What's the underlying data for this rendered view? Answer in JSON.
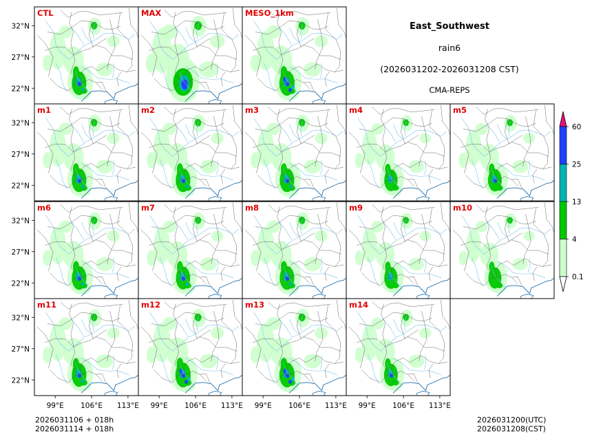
{
  "header": {
    "region": "East_Southwest",
    "variable": "rain6",
    "period": "(2026031202-2026031208 CST)",
    "system": "CMA-REPS"
  },
  "chart_data": {
    "type": "heatmap",
    "description_units": "6-hour accumulated precipitation (mm)",
    "lat_ticks": [
      "32°N",
      "27°N",
      "22°N"
    ],
    "lon_ticks": [
      "99°E",
      "106°E",
      "113°E"
    ],
    "lat_values": [
      32,
      27,
      22
    ],
    "lon_values": [
      99,
      106,
      113
    ],
    "lat_range": [
      19.5,
      35
    ],
    "lon_range": [
      95,
      115
    ],
    "colorbar": {
      "levels": [
        "0.1",
        "4",
        "13",
        "25",
        "60"
      ],
      "colors": [
        "#ccffcc",
        "#00c800",
        "#00b4b4",
        "#2040ff"
      ],
      "under_color": "#ffffff",
      "over_color": "#e6127c"
    },
    "members": [
      {
        "label": "CTL",
        "intensity": 1.0
      },
      {
        "label": "MAX",
        "intensity": 1.4
      },
      {
        "label": "MESO_1km",
        "intensity": 1.1
      },
      {
        "label": "m1",
        "intensity": 1.0
      },
      {
        "label": "m2",
        "intensity": 1.0
      },
      {
        "label": "m3",
        "intensity": 1.0
      },
      {
        "label": "m4",
        "intensity": 0.85
      },
      {
        "label": "m5",
        "intensity": 0.9
      },
      {
        "label": "m6",
        "intensity": 1.0
      },
      {
        "label": "m7",
        "intensity": 0.95
      },
      {
        "label": "m8",
        "intensity": 1.0
      },
      {
        "label": "m9",
        "intensity": 0.85
      },
      {
        "label": "m10",
        "intensity": 0.8
      },
      {
        "label": "m11",
        "intensity": 1.0
      },
      {
        "label": "m12",
        "intensity": 1.1
      },
      {
        "label": "m13",
        "intensity": 1.1
      },
      {
        "label": "m14",
        "intensity": 0.9
      }
    ]
  },
  "footer": {
    "init_line1": "2026031106  +  018h",
    "init_line2": "2026031114  +  018h",
    "valid_line1": "2026031200(UTC)",
    "valid_line2": "2026031208(CST)"
  }
}
